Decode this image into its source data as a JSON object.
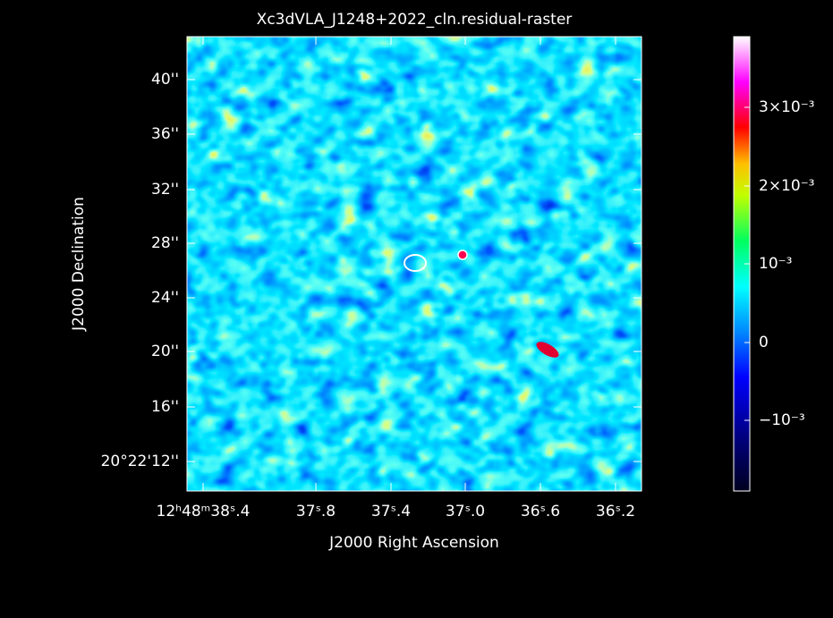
{
  "title": "Xc3dVLA_J1248+2022_cln.residual-raster",
  "x_axis": {
    "label": "J2000 Right Ascension",
    "ticks": [
      "12ʰ48ᵐ38ˢ.4",
      "37ˢ.8",
      "37ˢ.4",
      "37ˢ.0",
      "36ˢ.6",
      "36ˢ.2"
    ]
  },
  "y_axis": {
    "label": "J2000 Declination",
    "ticks": [
      "40''",
      "36''",
      "32''",
      "28''",
      "24''",
      "20''",
      "16''",
      "20°22'12''"
    ]
  },
  "colorbar": {
    "ticks": [
      "3×10⁻³",
      "2×10⁻³",
      "10⁻³",
      "0",
      "−10⁻³"
    ]
  }
}
